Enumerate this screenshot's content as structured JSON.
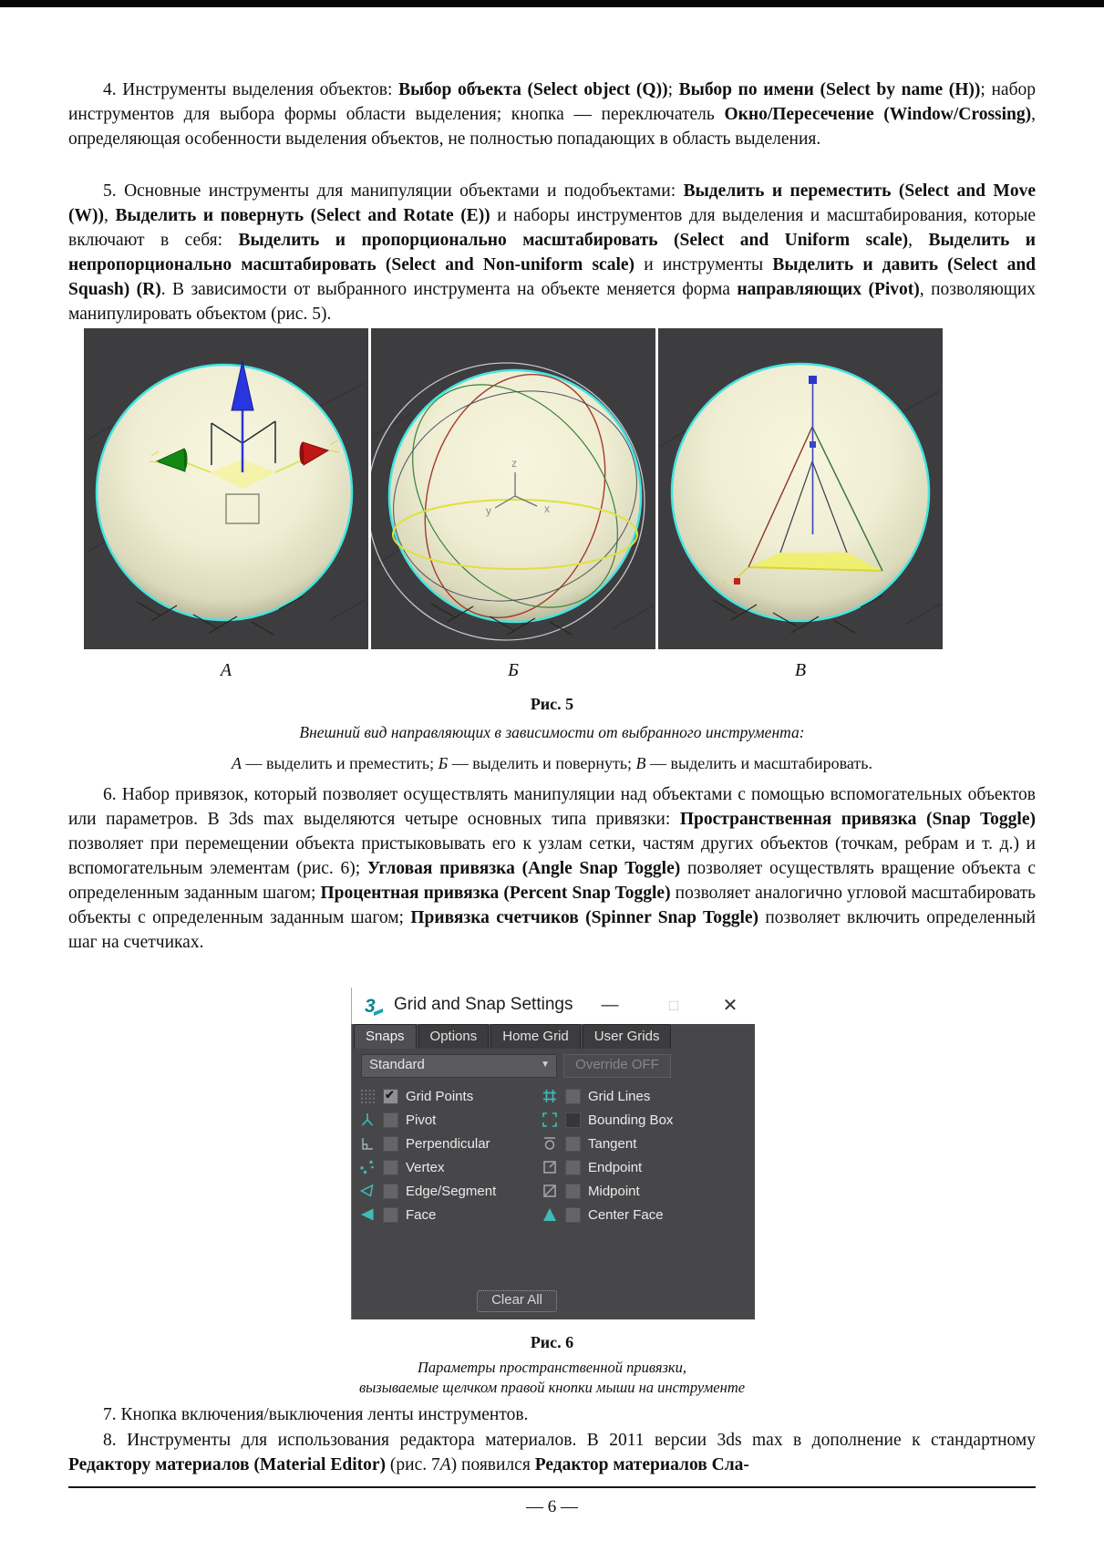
{
  "page": {
    "number_label": "— 6 —"
  },
  "paragraphs": {
    "p4": [
      {
        "t": "4. Инструменты выделения объектов: "
      },
      {
        "t": "Выбор объекта (Select object (Q))",
        "b": true
      },
      {
        "t": "; "
      },
      {
        "t": "Выбор по имени (Select by name (H))",
        "b": true
      },
      {
        "t": "; набор инструментов для выбора формы области выделения; кнопка — переключатель "
      },
      {
        "t": "Окно/Пересечение (Window/Crossing)",
        "b": true
      },
      {
        "t": ", определяющая особенности выделения объектов, не полностью попадающих в область выделения."
      }
    ],
    "p5": [
      {
        "t": "5. Основные инструменты для манипуляции объектами и подобъектами: "
      },
      {
        "t": "Выделить и переместить (Select and Move (W))",
        "b": true
      },
      {
        "t": ", "
      },
      {
        "t": "Выделить и повернуть (Select and Rotate (E))",
        "b": true
      },
      {
        "t": " и наборы инструментов для выделения и масштабирования, которые включают в себя: "
      },
      {
        "t": "Выделить и пропорционально масштабировать (Select and Uniform scale)",
        "b": true
      },
      {
        "t": ", "
      },
      {
        "t": "Выделить и непропорционально масштабировать (Select and Non-uniform scale)",
        "b": true
      },
      {
        "t": " и инструменты "
      },
      {
        "t": "Выделить и давить (Select and Squash) (R)",
        "b": true
      },
      {
        "t": ". В зависимости от выбранного инструмента на объекте меняется форма "
      },
      {
        "t": "направляющих (Pivot)",
        "b": true
      },
      {
        "t": ", позволяющих манипулировать объектом (рис. 5)."
      }
    ],
    "p6": [
      {
        "t": "6. Набор привязок, который позволяет осуществлять манипуляции над объектами с помощью вспомогательных объектов или параметров. В 3ds max выделяются четыре основных типа привязки: "
      },
      {
        "t": "Пространственная привязка (Snap Toggle)",
        "b": true
      },
      {
        "t": " позволяет при перемещении объекта пристыковывать его к узлам сетки, частям других объектов (точкам, ребрам и т. д.) и вспомогательным элементам (рис. 6); "
      },
      {
        "t": "Угловая привязка (Angle Snap Toggle)",
        "b": true
      },
      {
        "t": " позволяет осуществлять вращение объекта с определенным заданным шагом; "
      },
      {
        "t": "Процентная привязка (Percent Snap Toggle)",
        "b": true
      },
      {
        "t": " позволяет аналогично угловой масштабировать объекты с определенным заданным шагом; "
      },
      {
        "t": "Привязка счетчиков (Spinner Snap Toggle)",
        "b": true
      },
      {
        "t": " позволяет включить определенный шаг на счетчиках."
      }
    ],
    "p7": [
      {
        "t": "7. Кнопка включения/выключения ленты инструментов."
      }
    ],
    "p8": [
      {
        "t": "8. Инструменты для использования редактора материалов. В 2011 версии 3ds max в дополнение к стандартному "
      },
      {
        "t": "Редактору материалов (Material Editor)",
        "b": true
      },
      {
        "t": " (рис. 7"
      },
      {
        "t": "А",
        "i": true
      },
      {
        "t": ") появился "
      },
      {
        "t": "Редактор материалов Сла-",
        "b": true
      }
    ]
  },
  "figure5": {
    "panel_labels": [
      "А",
      "Б",
      "В"
    ],
    "axis_labels": {
      "x": "x",
      "y": "y",
      "z": "z"
    },
    "label": "Рис. 5",
    "caption": "Внешний вид направляющих в зависимости от выбранного инструмента:",
    "legend": [
      {
        "t": "А",
        "i": true
      },
      {
        "t": " — выделить и преместить; "
      },
      {
        "t": "Б",
        "i": true
      },
      {
        "t": " — выделить и повернуть; "
      },
      {
        "t": "В",
        "i": true
      },
      {
        "t": " — выделить и масштабировать."
      }
    ]
  },
  "dialog": {
    "title": "Grid and Snap Settings",
    "window_buttons": {
      "minimize": "—",
      "maximize": "□",
      "close": "✕"
    },
    "tabs": [
      "Snaps",
      "Options",
      "Home Grid",
      "User Grids"
    ],
    "active_tab": "Snaps",
    "dropdown_value": "Standard",
    "override_button": "Override OFF",
    "clear_button": "Clear All",
    "snaps_left": [
      {
        "label": "Grid Points",
        "checked": true,
        "icon": "grid-points"
      },
      {
        "label": "Pivot",
        "checked": false,
        "icon": "pivot"
      },
      {
        "label": "Perpendicular",
        "checked": false,
        "icon": "perpendicular"
      },
      {
        "label": "Vertex",
        "checked": false,
        "icon": "vertex"
      },
      {
        "label": "Edge/Segment",
        "checked": false,
        "icon": "edge-segment"
      },
      {
        "label": "Face",
        "checked": false,
        "icon": "face"
      }
    ],
    "snaps_right": [
      {
        "label": "Grid Lines",
        "checked": false,
        "icon": "grid-lines"
      },
      {
        "label": "Bounding Box",
        "checked": false,
        "icon": "bounding-box"
      },
      {
        "label": "Tangent",
        "checked": false,
        "icon": "tangent"
      },
      {
        "label": "Endpoint",
        "checked": false,
        "icon": "endpoint"
      },
      {
        "label": "Midpoint",
        "checked": false,
        "icon": "midpoint"
      },
      {
        "label": "Center Face",
        "checked": false,
        "icon": "center-face"
      }
    ],
    "colors": {
      "accent_teal": "#3fbcb7",
      "body_bg": "#47474a",
      "title_bg": "#ffffff",
      "selection_cyan": "#44e4e0"
    }
  },
  "figure6": {
    "label": "Рис. 6",
    "caption_line1": "Параметры пространственной привязки,",
    "caption_line2": "вызываемые щелчком правой кнопки мыши на инструменте"
  }
}
